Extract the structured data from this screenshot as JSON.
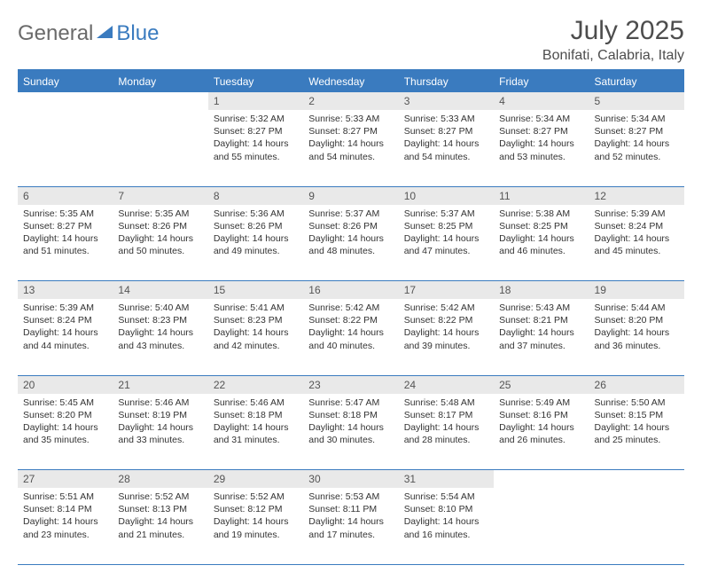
{
  "brand": {
    "general": "General",
    "blue": "Blue"
  },
  "title": "July 2025",
  "location": "Bonifati, Calabria, Italy",
  "colors": {
    "accent": "#3a7bbf",
    "header_text": "#ffffff",
    "daynum_bg": "#e9e9e9",
    "text": "#333333",
    "muted": "#555555"
  },
  "weekdays": [
    "Sunday",
    "Monday",
    "Tuesday",
    "Wednesday",
    "Thursday",
    "Friday",
    "Saturday"
  ],
  "weeks": [
    [
      null,
      null,
      {
        "n": "1",
        "sr": "5:32 AM",
        "ss": "8:27 PM",
        "dl": "14 hours and 55 minutes."
      },
      {
        "n": "2",
        "sr": "5:33 AM",
        "ss": "8:27 PM",
        "dl": "14 hours and 54 minutes."
      },
      {
        "n": "3",
        "sr": "5:33 AM",
        "ss": "8:27 PM",
        "dl": "14 hours and 54 minutes."
      },
      {
        "n": "4",
        "sr": "5:34 AM",
        "ss": "8:27 PM",
        "dl": "14 hours and 53 minutes."
      },
      {
        "n": "5",
        "sr": "5:34 AM",
        "ss": "8:27 PM",
        "dl": "14 hours and 52 minutes."
      }
    ],
    [
      {
        "n": "6",
        "sr": "5:35 AM",
        "ss": "8:27 PM",
        "dl": "14 hours and 51 minutes."
      },
      {
        "n": "7",
        "sr": "5:35 AM",
        "ss": "8:26 PM",
        "dl": "14 hours and 50 minutes."
      },
      {
        "n": "8",
        "sr": "5:36 AM",
        "ss": "8:26 PM",
        "dl": "14 hours and 49 minutes."
      },
      {
        "n": "9",
        "sr": "5:37 AM",
        "ss": "8:26 PM",
        "dl": "14 hours and 48 minutes."
      },
      {
        "n": "10",
        "sr": "5:37 AM",
        "ss": "8:25 PM",
        "dl": "14 hours and 47 minutes."
      },
      {
        "n": "11",
        "sr": "5:38 AM",
        "ss": "8:25 PM",
        "dl": "14 hours and 46 minutes."
      },
      {
        "n": "12",
        "sr": "5:39 AM",
        "ss": "8:24 PM",
        "dl": "14 hours and 45 minutes."
      }
    ],
    [
      {
        "n": "13",
        "sr": "5:39 AM",
        "ss": "8:24 PM",
        "dl": "14 hours and 44 minutes."
      },
      {
        "n": "14",
        "sr": "5:40 AM",
        "ss": "8:23 PM",
        "dl": "14 hours and 43 minutes."
      },
      {
        "n": "15",
        "sr": "5:41 AM",
        "ss": "8:23 PM",
        "dl": "14 hours and 42 minutes."
      },
      {
        "n": "16",
        "sr": "5:42 AM",
        "ss": "8:22 PM",
        "dl": "14 hours and 40 minutes."
      },
      {
        "n": "17",
        "sr": "5:42 AM",
        "ss": "8:22 PM",
        "dl": "14 hours and 39 minutes."
      },
      {
        "n": "18",
        "sr": "5:43 AM",
        "ss": "8:21 PM",
        "dl": "14 hours and 37 minutes."
      },
      {
        "n": "19",
        "sr": "5:44 AM",
        "ss": "8:20 PM",
        "dl": "14 hours and 36 minutes."
      }
    ],
    [
      {
        "n": "20",
        "sr": "5:45 AM",
        "ss": "8:20 PM",
        "dl": "14 hours and 35 minutes."
      },
      {
        "n": "21",
        "sr": "5:46 AM",
        "ss": "8:19 PM",
        "dl": "14 hours and 33 minutes."
      },
      {
        "n": "22",
        "sr": "5:46 AM",
        "ss": "8:18 PM",
        "dl": "14 hours and 31 minutes."
      },
      {
        "n": "23",
        "sr": "5:47 AM",
        "ss": "8:18 PM",
        "dl": "14 hours and 30 minutes."
      },
      {
        "n": "24",
        "sr": "5:48 AM",
        "ss": "8:17 PM",
        "dl": "14 hours and 28 minutes."
      },
      {
        "n": "25",
        "sr": "5:49 AM",
        "ss": "8:16 PM",
        "dl": "14 hours and 26 minutes."
      },
      {
        "n": "26",
        "sr": "5:50 AM",
        "ss": "8:15 PM",
        "dl": "14 hours and 25 minutes."
      }
    ],
    [
      {
        "n": "27",
        "sr": "5:51 AM",
        "ss": "8:14 PM",
        "dl": "14 hours and 23 minutes."
      },
      {
        "n": "28",
        "sr": "5:52 AM",
        "ss": "8:13 PM",
        "dl": "14 hours and 21 minutes."
      },
      {
        "n": "29",
        "sr": "5:52 AM",
        "ss": "8:12 PM",
        "dl": "14 hours and 19 minutes."
      },
      {
        "n": "30",
        "sr": "5:53 AM",
        "ss": "8:11 PM",
        "dl": "14 hours and 17 minutes."
      },
      {
        "n": "31",
        "sr": "5:54 AM",
        "ss": "8:10 PM",
        "dl": "14 hours and 16 minutes."
      },
      null,
      null
    ]
  ],
  "labels": {
    "sunrise": "Sunrise:",
    "sunset": "Sunset:",
    "daylight": "Daylight:"
  }
}
